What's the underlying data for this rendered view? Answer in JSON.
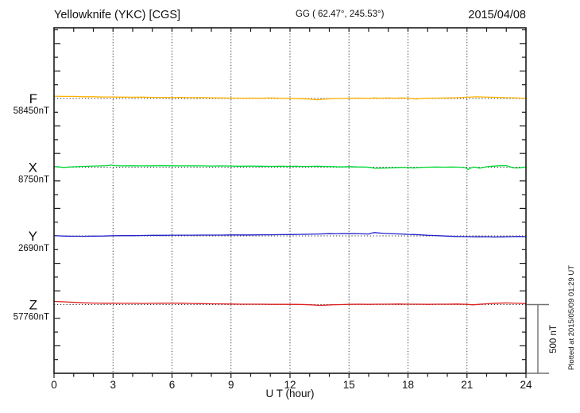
{
  "header": {
    "station_title": "Yellowknife (YKC)  [CGS]",
    "gg_coords": "GG ( 62.47°, 245.53°)",
    "date": "2015/04/08"
  },
  "x_axis": {
    "title": "U T (hour)",
    "tick_labels": [
      "0",
      "3",
      "6",
      "9",
      "12",
      "15",
      "18",
      "21",
      "24"
    ]
  },
  "scale_bar": {
    "label": "500 nT",
    "span_nT": 500
  },
  "plot_note": "Plotted at 2015/05/09 01:29 UT",
  "colors": {
    "F": "#FFB200",
    "X": "#00D935",
    "Y": "#2323CD",
    "Z": "#DD2222",
    "axis": "#1a1a1a",
    "scale_bar": "#707070"
  },
  "chart_data": {
    "type": "line",
    "title": "Yellowknife (YKC) [CGS] magnetogram, 2015/04/08",
    "xlabel": "U T (hour)",
    "x_range": [
      0,
      24
    ],
    "x_major_step_hours": 3,
    "x_minor_step_hours": 1,
    "y_division_nT": 500,
    "y_minor_tick_nT": 100,
    "grid": "dotted vertical lines every 3 h; dotted horizontal baseline per trace",
    "legend_position": "left margin",
    "series": [
      {
        "name": "F",
        "baseline_nT": 58450,
        "baseline_label": "58450nT",
        "color": "#FFB200",
        "points_hour_devnT": [
          [
            0,
            17
          ],
          [
            0.5,
            15
          ],
          [
            1,
            15
          ],
          [
            1.5,
            13
          ],
          [
            2,
            13
          ],
          [
            2.5,
            11
          ],
          [
            3,
            11
          ],
          [
            3.5,
            10
          ],
          [
            4,
            9
          ],
          [
            4.5,
            10
          ],
          [
            5,
            8
          ],
          [
            5.5,
            8
          ],
          [
            6,
            7
          ],
          [
            6.5,
            8
          ],
          [
            7,
            6
          ],
          [
            7.5,
            7
          ],
          [
            8,
            5
          ],
          [
            8.5,
            4
          ],
          [
            9,
            3
          ],
          [
            9.5,
            2
          ],
          [
            10,
            3
          ],
          [
            10.5,
            2
          ],
          [
            11,
            4
          ],
          [
            11.5,
            2
          ],
          [
            12,
            1
          ],
          [
            12.5,
            -2
          ],
          [
            13,
            -4
          ],
          [
            13.4,
            -9
          ],
          [
            13.7,
            -5
          ],
          [
            14,
            -2
          ],
          [
            14.5,
            0
          ],
          [
            15,
            2
          ],
          [
            15.5,
            3
          ],
          [
            16,
            1
          ],
          [
            16.3,
            4
          ],
          [
            16.6,
            2
          ],
          [
            17,
            4
          ],
          [
            17.3,
            2
          ],
          [
            17.7,
            4
          ],
          [
            18,
            2
          ],
          [
            18.4,
            -4
          ],
          [
            18.7,
            1
          ],
          [
            19,
            2
          ],
          [
            19.5,
            3
          ],
          [
            20,
            4
          ],
          [
            20.5,
            6
          ],
          [
            21,
            9
          ],
          [
            21.5,
            12
          ],
          [
            21.8,
            11
          ],
          [
            22.2,
            9
          ],
          [
            22.6,
            8
          ],
          [
            23,
            6
          ],
          [
            23.4,
            5
          ],
          [
            23.7,
            3
          ],
          [
            24,
            2
          ]
        ]
      },
      {
        "name": "X",
        "baseline_nT": 8750,
        "baseline_label": "8750nT",
        "color": "#00D935",
        "points_hour_devnT": [
          [
            0,
            5
          ],
          [
            0.25,
            2
          ],
          [
            0.5,
            -2
          ],
          [
            0.75,
            1
          ],
          [
            1,
            3
          ],
          [
            1.5,
            6
          ],
          [
            2,
            8
          ],
          [
            2.4,
            9
          ],
          [
            2.7,
            11
          ],
          [
            2.9,
            15
          ],
          [
            3.1,
            11
          ],
          [
            3.4,
            9
          ],
          [
            3.7,
            10
          ],
          [
            4,
            10
          ],
          [
            4.5,
            9
          ],
          [
            5,
            10
          ],
          [
            5.5,
            11
          ],
          [
            6,
            10
          ],
          [
            6.5,
            9
          ],
          [
            7,
            10
          ],
          [
            7.5,
            9
          ],
          [
            8,
            8
          ],
          [
            8.5,
            9
          ],
          [
            9,
            8
          ],
          [
            9.5,
            7
          ],
          [
            10,
            8
          ],
          [
            10.5,
            7
          ],
          [
            11,
            6
          ],
          [
            11.5,
            7
          ],
          [
            12,
            6
          ],
          [
            12.3,
            7
          ],
          [
            12.6,
            5
          ],
          [
            13,
            6
          ],
          [
            13.4,
            7
          ],
          [
            13.8,
            5
          ],
          [
            14.2,
            4
          ],
          [
            14.6,
            2
          ],
          [
            15,
            4
          ],
          [
            15.4,
            2
          ],
          [
            15.8,
            1
          ],
          [
            16.1,
            -2
          ],
          [
            16.3,
            -8
          ],
          [
            16.6,
            -7
          ],
          [
            17,
            -6
          ],
          [
            17.3,
            -4
          ],
          [
            17.6,
            -2
          ],
          [
            18,
            -3
          ],
          [
            18.3,
            -6
          ],
          [
            18.6,
            -2
          ],
          [
            19,
            0
          ],
          [
            19.4,
            1
          ],
          [
            19.8,
            0
          ],
          [
            20.2,
            1
          ],
          [
            20.6,
            0
          ],
          [
            20.9,
            -3
          ],
          [
            21.05,
            -17
          ],
          [
            21.2,
            -5
          ],
          [
            21.35,
            1
          ],
          [
            21.5,
            -3
          ],
          [
            21.65,
            -7
          ],
          [
            21.8,
            -2
          ],
          [
            22,
            3
          ],
          [
            22.3,
            7
          ],
          [
            22.6,
            10
          ],
          [
            23,
            11
          ],
          [
            23.15,
            4
          ],
          [
            23.3,
            -3
          ],
          [
            23.5,
            -6
          ],
          [
            23.7,
            -4
          ],
          [
            23.85,
            -1
          ],
          [
            24,
            2
          ]
        ]
      },
      {
        "name": "Y",
        "baseline_nT": 2690,
        "baseline_label": "2690nT",
        "color": "#2323CD",
        "points_hour_devnT": [
          [
            0,
            2
          ],
          [
            0.3,
            0
          ],
          [
            0.6,
            -2
          ],
          [
            1,
            -3
          ],
          [
            1.5,
            -3
          ],
          [
            2,
            -2
          ],
          [
            2.5,
            -1
          ],
          [
            3,
            1
          ],
          [
            3.5,
            2
          ],
          [
            4,
            2
          ],
          [
            4.5,
            3
          ],
          [
            5,
            4
          ],
          [
            5.5,
            4
          ],
          [
            6,
            5
          ],
          [
            6.5,
            5
          ],
          [
            7,
            5
          ],
          [
            7.5,
            6
          ],
          [
            8,
            6
          ],
          [
            8.5,
            6
          ],
          [
            9,
            7
          ],
          [
            9.5,
            7
          ],
          [
            10,
            7
          ],
          [
            10.5,
            8
          ],
          [
            11,
            8
          ],
          [
            11.5,
            9
          ],
          [
            12,
            10
          ],
          [
            12.5,
            11
          ],
          [
            13,
            12
          ],
          [
            13.5,
            14
          ],
          [
            14,
            16
          ],
          [
            14.3,
            15
          ],
          [
            14.6,
            17
          ],
          [
            15,
            16
          ],
          [
            15.3,
            17
          ],
          [
            15.6,
            15
          ],
          [
            16,
            14
          ],
          [
            16.15,
            20
          ],
          [
            16.3,
            24
          ],
          [
            16.45,
            22
          ],
          [
            16.6,
            20
          ],
          [
            16.8,
            18
          ],
          [
            17,
            17
          ],
          [
            17.3,
            15
          ],
          [
            17.6,
            14
          ],
          [
            18,
            11
          ],
          [
            18.3,
            10
          ],
          [
            18.6,
            8
          ],
          [
            19,
            4
          ],
          [
            19.3,
            3
          ],
          [
            19.6,
            1
          ],
          [
            20,
            -2
          ],
          [
            20.4,
            -4
          ],
          [
            20.8,
            -5
          ],
          [
            21.2,
            -6
          ],
          [
            21.6,
            -7
          ],
          [
            22,
            -6
          ],
          [
            22.4,
            -8
          ],
          [
            22.8,
            -7
          ],
          [
            23.2,
            -6
          ],
          [
            23.6,
            -4
          ],
          [
            24,
            -6
          ]
        ]
      },
      {
        "name": "Z",
        "baseline_nT": 57760,
        "baseline_label": "57760nT",
        "color": "#DD2222",
        "points_hour_devnT": [
          [
            0,
            23
          ],
          [
            0.5,
            20
          ],
          [
            1,
            16
          ],
          [
            1.5,
            13
          ],
          [
            2,
            11
          ],
          [
            2.5,
            10
          ],
          [
            3,
            10
          ],
          [
            3.5,
            9
          ],
          [
            4,
            9
          ],
          [
            4.5,
            8
          ],
          [
            5,
            9
          ],
          [
            5.5,
            10
          ],
          [
            6,
            11
          ],
          [
            6.5,
            10
          ],
          [
            7,
            8
          ],
          [
            7.5,
            7
          ],
          [
            8,
            6
          ],
          [
            8.5,
            5
          ],
          [
            9,
            4
          ],
          [
            9.5,
            3
          ],
          [
            10,
            3
          ],
          [
            10.5,
            3
          ],
          [
            11,
            2
          ],
          [
            11.5,
            2
          ],
          [
            12,
            2
          ],
          [
            12.5,
            1
          ],
          [
            13,
            -1
          ],
          [
            13.5,
            -6
          ],
          [
            13.8,
            -4
          ],
          [
            14.2,
            -1
          ],
          [
            14.6,
            0
          ],
          [
            15,
            2
          ],
          [
            15.5,
            3
          ],
          [
            16,
            2
          ],
          [
            16.5,
            3
          ],
          [
            17,
            3
          ],
          [
            17.5,
            4
          ],
          [
            18,
            3
          ],
          [
            18.5,
            3
          ],
          [
            19,
            2
          ],
          [
            19.5,
            3
          ],
          [
            20,
            3
          ],
          [
            20.5,
            4
          ],
          [
            21,
            2
          ],
          [
            21.3,
            -2
          ],
          [
            21.6,
            2
          ],
          [
            22,
            6
          ],
          [
            22.5,
            10
          ],
          [
            23,
            12
          ],
          [
            23.3,
            11
          ],
          [
            23.6,
            9
          ],
          [
            24,
            7
          ]
        ]
      }
    ]
  }
}
